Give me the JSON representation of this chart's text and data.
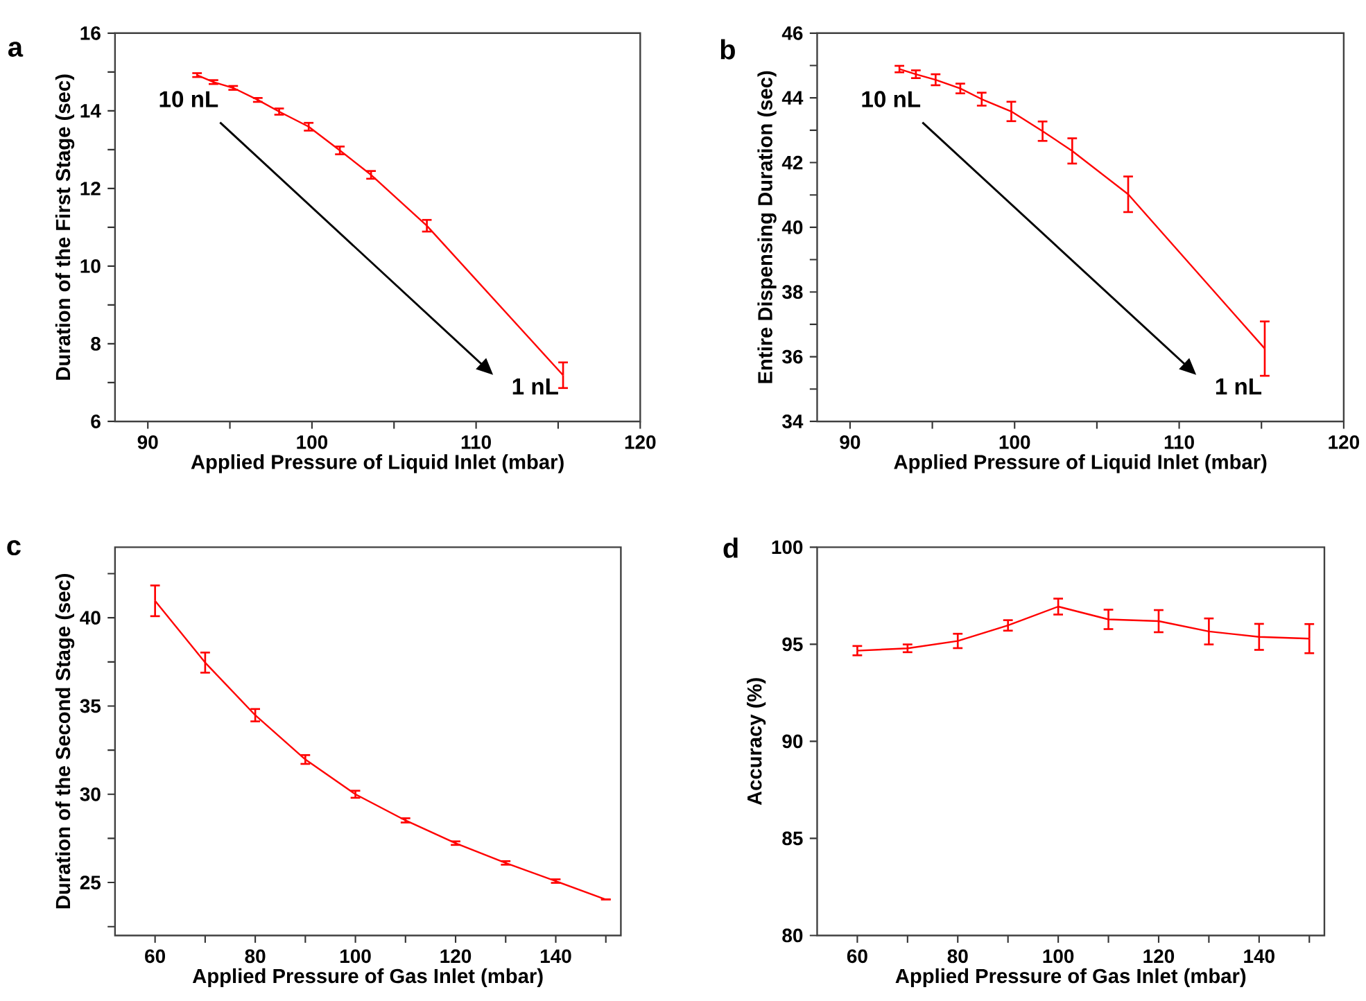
{
  "chart_data": [
    {
      "type": "line",
      "title": "a",
      "xlabel": "Applied Pressure of Liquid Inlet (mbar)",
      "ylabel": "Duration of the First Stage  (sec)",
      "color": "#ff0000",
      "x": [
        93.0,
        94.0,
        95.2,
        96.7,
        98.0,
        99.8,
        101.7,
        103.6,
        107.0,
        115.3
      ],
      "values": [
        14.92,
        14.74,
        14.59,
        14.28,
        13.98,
        13.59,
        12.98,
        12.35,
        11.04,
        7.19
      ],
      "errors": [
        0.05,
        0.05,
        0.05,
        0.05,
        0.08,
        0.1,
        0.1,
        0.1,
        0.15,
        0.33
      ],
      "xlim": [
        88,
        120
      ],
      "ylim": [
        6,
        16
      ],
      "xticks": [
        90,
        {
          "value": 95,
          "label": null
        },
        100,
        {
          "value": 105,
          "label": null
        },
        110,
        {
          "value": 115,
          "label": null
        },
        120
      ],
      "yticks": [
        6,
        {
          "value": 7,
          "label": null
        },
        8,
        {
          "value": 9,
          "label": null
        },
        10,
        {
          "value": 11,
          "label": null
        },
        12,
        {
          "value": 13,
          "label": null
        },
        14,
        {
          "value": 15,
          "label": null
        },
        16
      ],
      "annotations": [
        "10 nL",
        "1 nL"
      ]
    },
    {
      "type": "line",
      "title": "b",
      "xlabel": "Applied Pressure of Liquid Inlet (mbar)",
      "ylabel": "Entire Dispensing Duration  (sec)",
      "color": "#ff0000",
      "x": [
        93.0,
        94.0,
        95.2,
        96.7,
        98.0,
        99.8,
        101.7,
        103.5,
        106.9,
        115.2
      ],
      "values": [
        44.89,
        44.73,
        44.56,
        44.29,
        43.96,
        43.58,
        42.97,
        42.36,
        41.02,
        36.25
      ],
      "errors": [
        0.1,
        0.12,
        0.17,
        0.15,
        0.2,
        0.3,
        0.3,
        0.39,
        0.55,
        0.84
      ],
      "xlim": [
        88,
        120
      ],
      "ylim": [
        34,
        46
      ],
      "xticks": [
        90,
        {
          "value": 95,
          "label": null
        },
        100,
        {
          "value": 105,
          "label": null
        },
        110,
        {
          "value": 115,
          "label": null
        },
        120
      ],
      "yticks": [
        34,
        {
          "value": 35,
          "label": null
        },
        36,
        {
          "value": 37,
          "label": null
        },
        38,
        {
          "value": 39,
          "label": null
        },
        40,
        {
          "value": 41,
          "label": null
        },
        42,
        {
          "value": 43,
          "label": null
        },
        44,
        {
          "value": 45,
          "label": null
        },
        46
      ],
      "annotations": [
        "10 nL",
        "1 nL"
      ]
    },
    {
      "type": "line",
      "title": "c",
      "xlabel": "Applied Pressure of Gas Inlet (mbar)",
      "ylabel": "Duration of the Second Stage  (sec)",
      "color": "#ff0000",
      "x": [
        60,
        70,
        80,
        90,
        100,
        110,
        120,
        130,
        140,
        150
      ],
      "values": [
        40.96,
        37.46,
        34.48,
        31.97,
        30.0,
        28.52,
        27.23,
        26.11,
        25.08,
        24.04
      ],
      "errors": [
        0.87,
        0.57,
        0.35,
        0.25,
        0.2,
        0.12,
        0.1,
        0.1,
        0.1,
        null
      ],
      "xlim": [
        52,
        153
      ],
      "ylim": [
        22,
        44
      ],
      "xticks": [
        60,
        {
          "value": 70,
          "label": null
        },
        80,
        {
          "value": 90,
          "label": null
        },
        100,
        {
          "value": 110,
          "label": null
        },
        120,
        {
          "value": 130,
          "label": null
        },
        140,
        {
          "value": 150,
          "label": null
        }
      ],
      "yticks": [
        {
          "value": 22.5,
          "label": null
        },
        25,
        {
          "value": 27.5,
          "label": null
        },
        30,
        {
          "value": 32.5,
          "label": null
        },
        35,
        {
          "value": 37.5,
          "label": null
        },
        40,
        {
          "value": 42.5,
          "label": null
        }
      ]
    },
    {
      "type": "line",
      "title": "d",
      "xlabel": "Applied Pressure of Gas Inlet (mbar)",
      "ylabel": "Accuracy (%)",
      "color": "#ff0000",
      "x": [
        60,
        70,
        80,
        90,
        100,
        110,
        120,
        130,
        140,
        150
      ],
      "values": [
        94.67,
        94.79,
        95.17,
        95.97,
        96.94,
        96.28,
        96.19,
        95.66,
        95.38,
        95.29
      ],
      "errors": [
        0.24,
        0.2,
        0.37,
        0.27,
        0.41,
        0.5,
        0.57,
        0.67,
        0.67,
        0.75
      ],
      "xlim": [
        52,
        153
      ],
      "ylim": [
        80,
        100
      ],
      "xticks": [
        60,
        {
          "value": 70,
          "label": null
        },
        80,
        {
          "value": 90,
          "label": null
        },
        100,
        {
          "value": 110,
          "label": null
        },
        120,
        {
          "value": 130,
          "label": null
        },
        140,
        {
          "value": 150,
          "label": null
        }
      ],
      "yticks": [
        80,
        85,
        90,
        95,
        100
      ]
    }
  ]
}
